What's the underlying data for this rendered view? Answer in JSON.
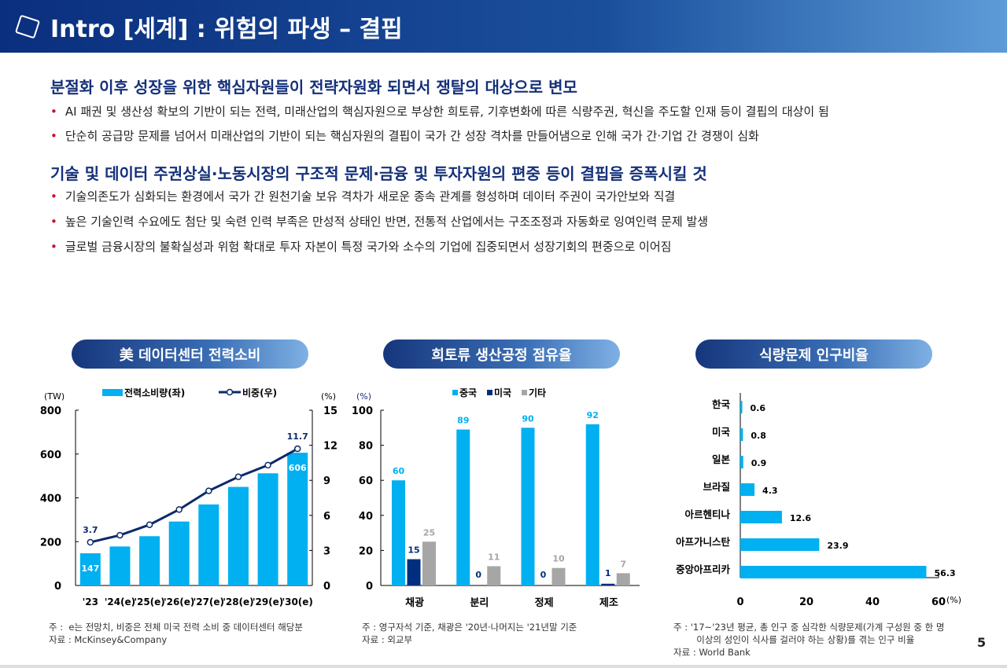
{
  "header": {
    "title": "Intro [세계] : 위험의 파생 – 결핍"
  },
  "sections": [
    {
      "title": "분절화 이후 성장을 위한 핵심자원들이 전략자원화 되면서 쟁탈의 대상으로 변모",
      "bullets": [
        "AI 패권 및 생산성 확보의 기반이 되는 전력, 미래산업의 핵심자원으로 부상한 희토류, 기후변화에 따른 식량주권, 혁신을 주도할 인재 등이 결핍의 대상이 됨",
        "단순히 공급망 문제를 넘어서 미래산업의 기반이 되는 핵심자원의 결핍이 국가 간 성장 격차를 만들어냄으로 인해 국가 간·기업 간 경쟁이 심화"
      ]
    },
    {
      "title": "기술 및 데이터 주권상실·노동시장의 구조적 문제·금융 및 투자자원의 편중 등이 결핍을 증폭시킬 것",
      "bullets": [
        "기술의존도가 심화되는 환경에서 국가 간 원천기술 보유 격차가 새로운 종속 관계를 형성하며 데이터 주권이 국가안보와 직결",
        "높은 기술인력 수요에도 첨단 및 숙련 인력 부족은 만성적 상태인 반면, 전통적 산업에서는 구조조정과 자동화로 잉여인력 문제 발생",
        "글로벌 금융시장의 불확실성과 위험 확대로 투자 자본이 특정 국가와 소수의 기업에 집중되면서 성장기회의 편중으로 이어짐"
      ]
    }
  ],
  "colors": {
    "cyan": "#00b0f0",
    "navy": "#002f7f",
    "gray": "#a6a6a6",
    "line": "#0c2a6b"
  },
  "chart_data": [
    {
      "type": "bar+line",
      "title": "美 데이터센터 전력소비",
      "categories": [
        "'23",
        "'24(e)",
        "'25(e)",
        "'26(e)",
        "'27(e)",
        "'28(e)",
        "'29(e)",
        "'30(e)"
      ],
      "series": [
        {
          "name": "전력소비량(좌)",
          "values": [
            147,
            178,
            225,
            292,
            370,
            450,
            512,
            606
          ],
          "axis": "left",
          "labels": {
            "0": "147",
            "7": "606"
          }
        },
        {
          "name": "비중(우)",
          "values": [
            3.7,
            4.3,
            5.2,
            6.5,
            8.1,
            9.3,
            10.3,
            11.7
          ],
          "axis": "right",
          "labels": {
            "0": "3.7",
            "7": "11.7"
          }
        }
      ],
      "ylabel_left": "(TW)",
      "ylabel_right": "(%)",
      "ylim_left": [
        0,
        800
      ],
      "ylim_right": [
        0,
        15
      ],
      "yticks_left": [
        "0",
        "200",
        "400",
        "600",
        "800"
      ],
      "yticks_right": [
        "0",
        "3",
        "6",
        "9",
        "12",
        "15"
      ],
      "notes": "주 :  e는 전망치, 비중은 전체 미국 전력 소비 중 데이터센터 해당분\n자료 : McKinsey&Company"
    },
    {
      "type": "bar",
      "title": "희토류 생산공정 점유율",
      "categories": [
        "채광",
        "분리",
        "정제",
        "제조"
      ],
      "series": [
        {
          "name": "중국",
          "values": [
            60,
            89,
            90,
            92
          ]
        },
        {
          "name": "미국",
          "values": [
            15,
            0,
            0,
            1
          ]
        },
        {
          "name": "기타",
          "values": [
            25,
            11,
            10,
            7
          ]
        }
      ],
      "ylabel": "(%)",
      "ylim": [
        0,
        100
      ],
      "yticks": [
        "0",
        "20",
        "40",
        "60",
        "80",
        "100"
      ],
      "notes": "주 : 영구자석 기준, 채광은 '20년·나머지는 '21년말 기준\n자료 : 외교부"
    },
    {
      "type": "bar",
      "orientation": "horizontal",
      "title": "식량문제 인구비율",
      "categories": [
        "한국",
        "미국",
        "일본",
        "브라질",
        "아르헨티나",
        "아프가니스탄",
        "중앙아프리카"
      ],
      "values": [
        0.6,
        0.8,
        0.9,
        4.3,
        12.6,
        23.9,
        56.3
      ],
      "xlim": [
        0,
        60
      ],
      "xticks": [
        "0",
        "20",
        "40",
        "60"
      ],
      "xlabel": "(%)",
      "notes": "주 : '17~'23년 평균, 총 인구 중 심각한 식량문제(가계 구성원 중 한 명\n        이상의 성인이 식사를 걸러야 하는 상황)를 겪는 인구 비율\n자료 : World Bank"
    }
  ],
  "page_number": "5"
}
